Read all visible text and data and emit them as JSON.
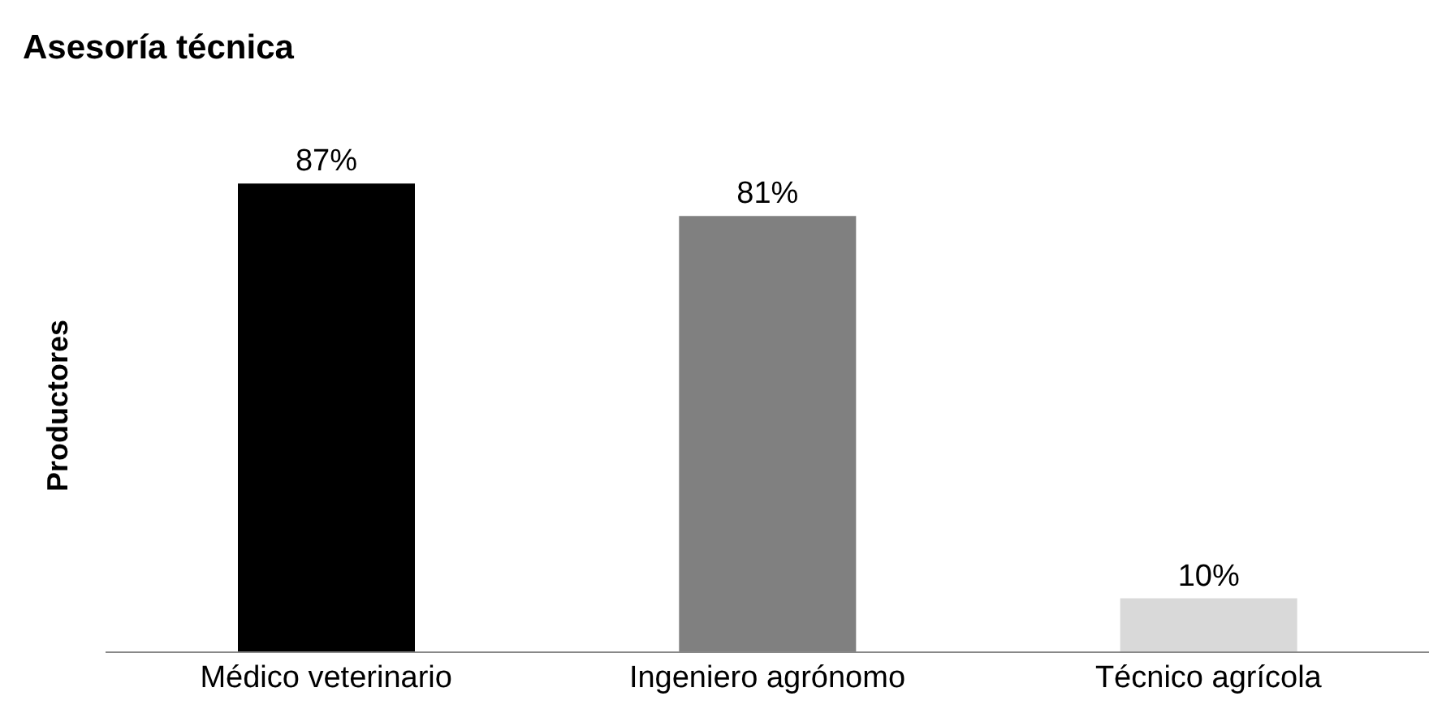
{
  "chart_data": {
    "type": "bar",
    "title": "Asesoría técnica",
    "ylabel": "Productores",
    "categories": [
      "Médico veterinario",
      "Ingeniero agrónomo",
      "Técnico agrícola"
    ],
    "values": [
      87,
      81,
      10
    ],
    "colors": [
      "#000000",
      "#808080",
      "#d9d9d9"
    ],
    "value_labels": [
      "87%",
      "81%",
      "10%"
    ],
    "grid": false,
    "legend": false
  }
}
